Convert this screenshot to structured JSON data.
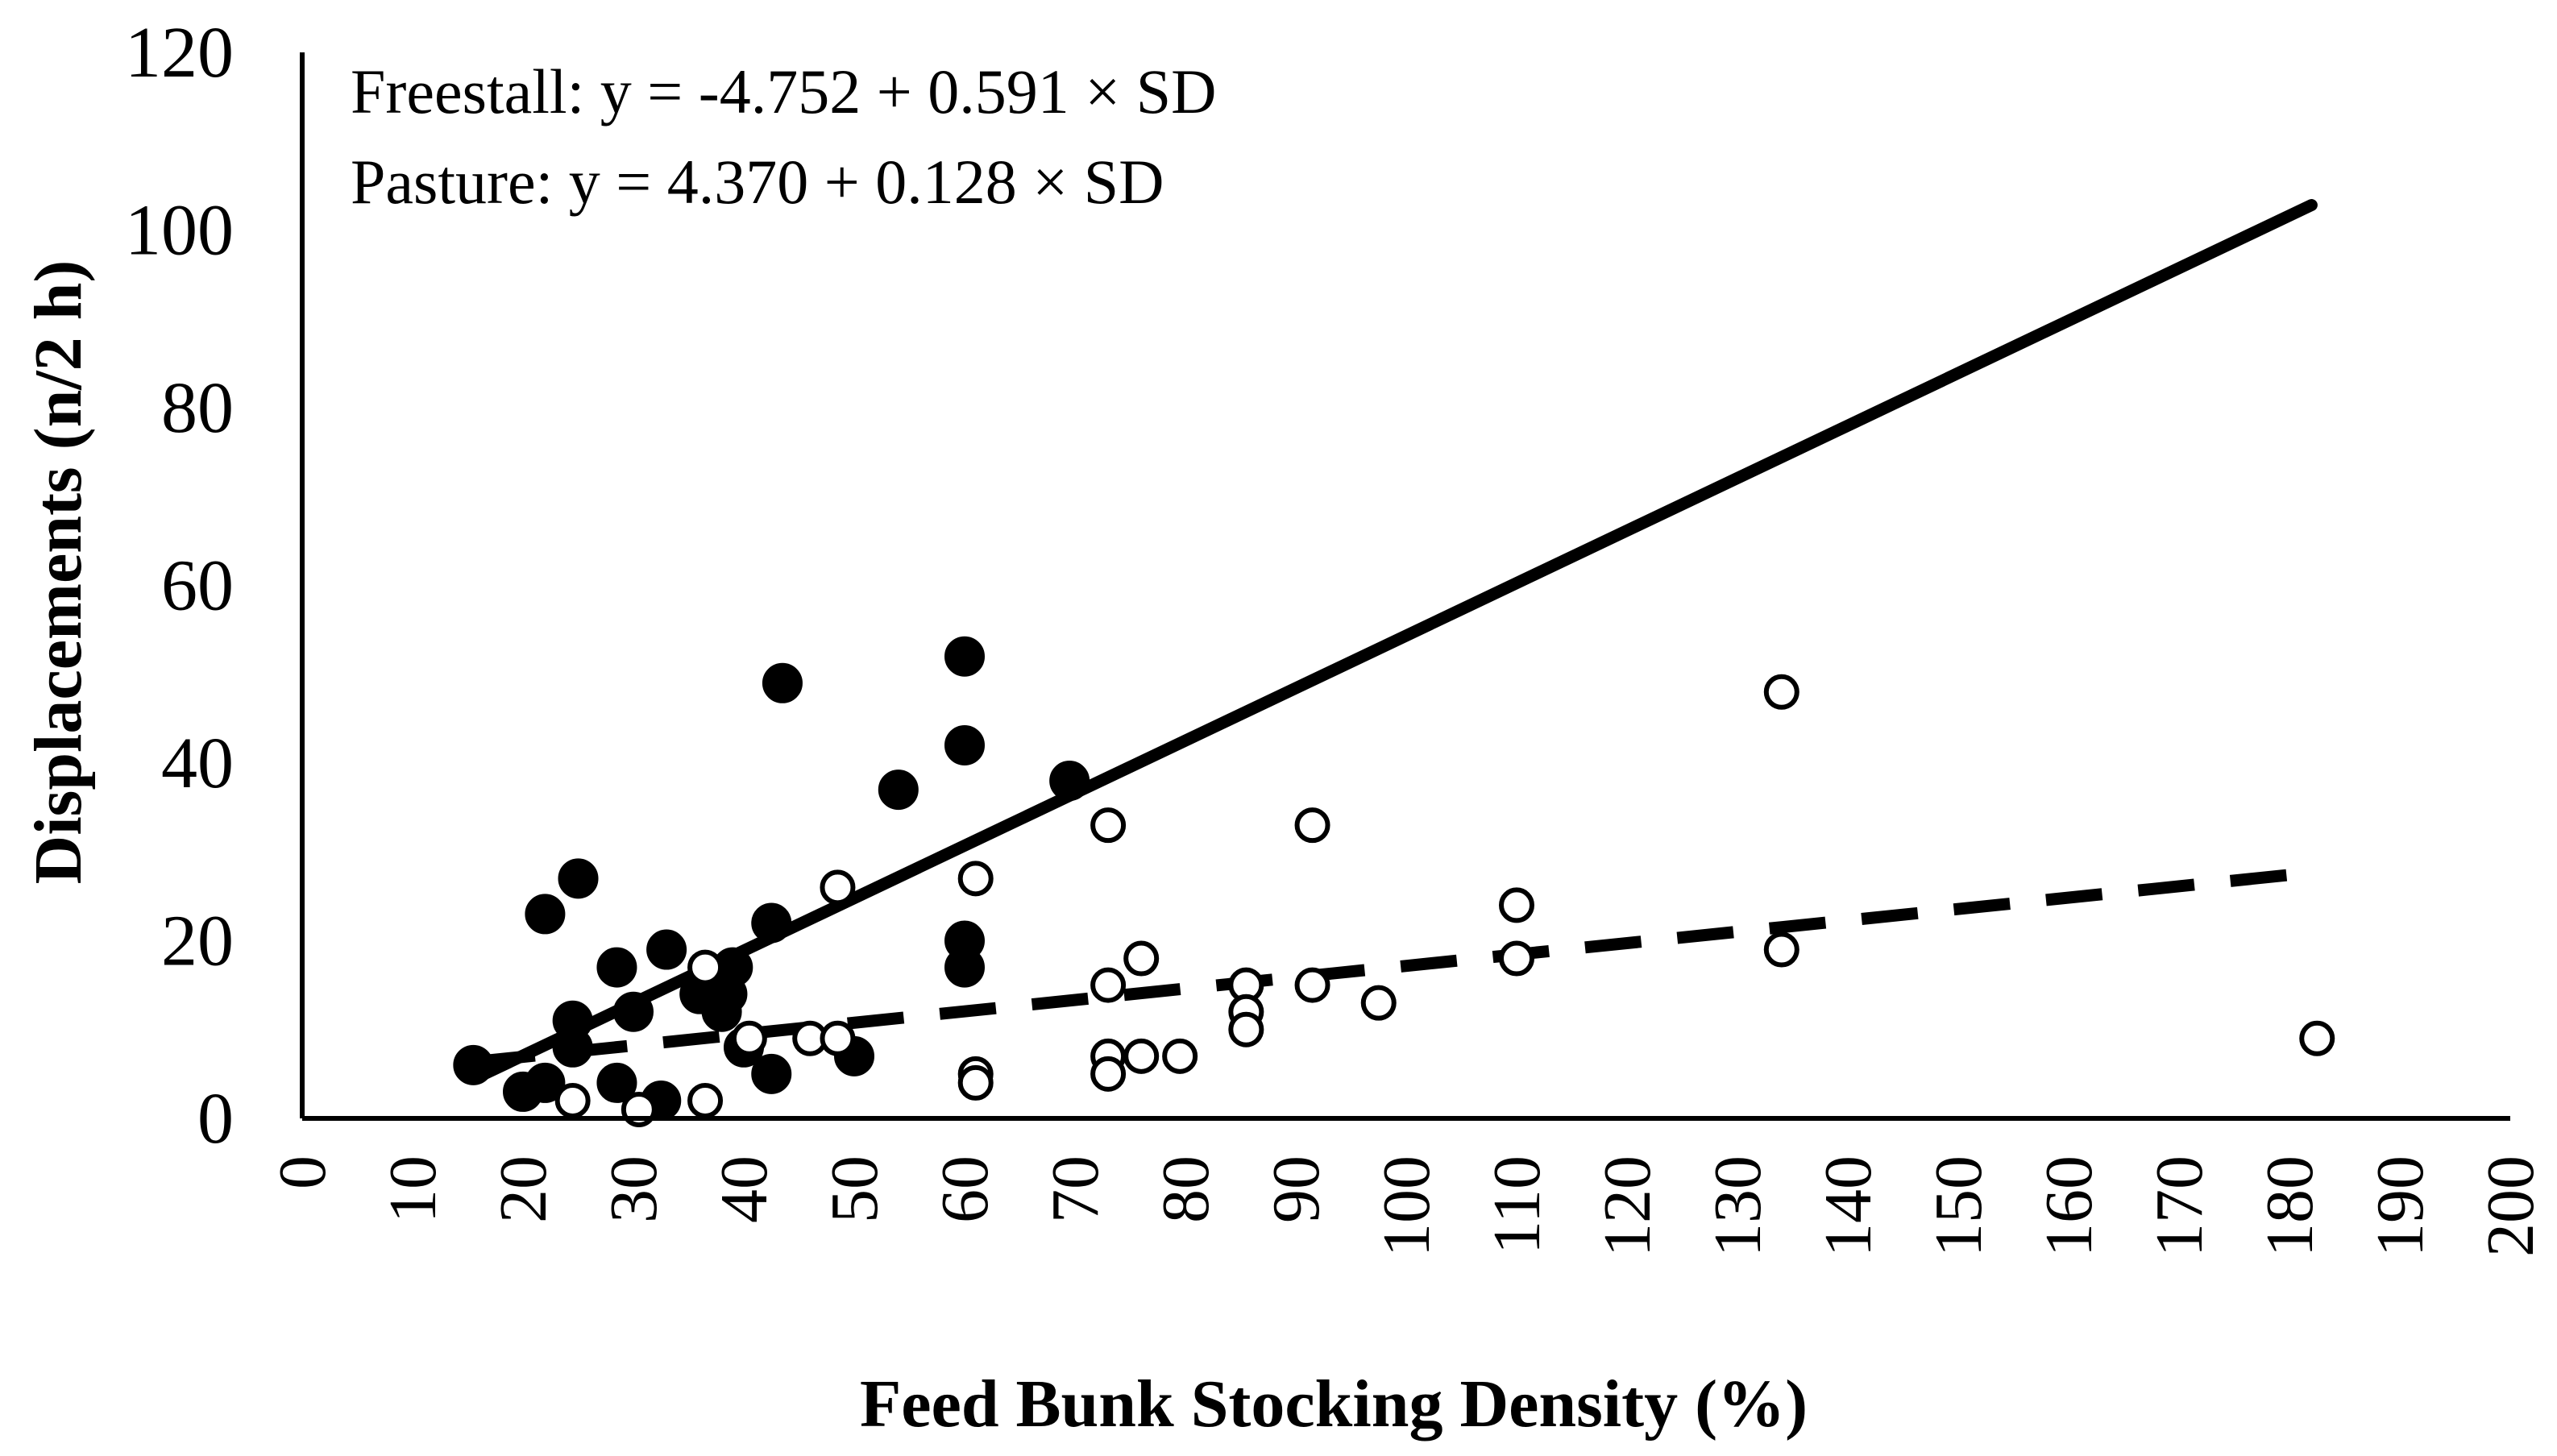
{
  "chart_data": {
    "type": "scatter",
    "xlabel": "Feed Bunk Stocking Density (%)",
    "ylabel": "Displacements (n/2 h)",
    "xlim": [
      0,
      200
    ],
    "ylim": [
      0,
      120
    ],
    "xticks": [
      0,
      10,
      20,
      30,
      40,
      50,
      60,
      70,
      80,
      90,
      100,
      110,
      120,
      130,
      140,
      150,
      160,
      170,
      180,
      190,
      200
    ],
    "yticks": [
      0,
      20,
      40,
      60,
      80,
      100,
      120
    ],
    "grid": false,
    "legend": "none",
    "annotations": [
      "Freestall: y = -4.752 + 0.591 × SD",
      "Pasture: y = 4.370 + 0.128 × SD"
    ],
    "series": [
      {
        "name": "Freestall",
        "marker": "filled-circle",
        "points": [
          [
            15.5,
            6
          ],
          [
            20,
            3
          ],
          [
            22,
            4
          ],
          [
            22,
            23
          ],
          [
            24.5,
            11
          ],
          [
            24.5,
            8
          ],
          [
            25,
            27
          ],
          [
            28.5,
            17
          ],
          [
            28.5,
            4
          ],
          [
            30,
            12
          ],
          [
            32.5,
            2
          ],
          [
            33,
            19
          ],
          [
            36,
            14
          ],
          [
            37,
            14
          ],
          [
            38,
            12
          ],
          [
            38.5,
            14
          ],
          [
            39,
            17
          ],
          [
            40,
            8
          ],
          [
            42.5,
            22
          ],
          [
            42.5,
            5
          ],
          [
            43.5,
            49
          ],
          [
            50,
            7
          ],
          [
            54,
            37
          ],
          [
            60,
            52
          ],
          [
            60,
            42
          ],
          [
            60,
            20
          ],
          [
            60,
            17
          ],
          [
            69.5,
            38
          ]
        ],
        "fit": {
          "intercept": -4.752,
          "slope": 0.591,
          "x_range": [
            16,
            182
          ],
          "style": "solid"
        }
      },
      {
        "name": "Pasture",
        "marker": "open-circle",
        "points": [
          [
            24.5,
            2
          ],
          [
            30.5,
            1
          ],
          [
            36.5,
            2
          ],
          [
            36.5,
            17
          ],
          [
            40.5,
            9
          ],
          [
            46,
            9
          ],
          [
            48.5,
            26
          ],
          [
            48.5,
            9
          ],
          [
            61,
            27
          ],
          [
            61,
            5
          ],
          [
            61,
            4
          ],
          [
            73,
            33
          ],
          [
            73,
            15
          ],
          [
            73,
            7
          ],
          [
            73,
            5
          ],
          [
            76,
            18
          ],
          [
            76,
            7
          ],
          [
            79.5,
            7
          ],
          [
            85.5,
            15
          ],
          [
            85.5,
            12
          ],
          [
            85.5,
            10
          ],
          [
            91.5,
            33
          ],
          [
            91.5,
            15
          ],
          [
            97.5,
            13
          ],
          [
            110,
            24
          ],
          [
            110,
            18
          ],
          [
            134,
            48
          ],
          [
            134,
            19
          ],
          [
            182.5,
            9
          ]
        ],
        "fit": {
          "intercept": 4.37,
          "slope": 0.128,
          "x_range": [
            16,
            182
          ],
          "style": "dashed"
        }
      }
    ]
  }
}
